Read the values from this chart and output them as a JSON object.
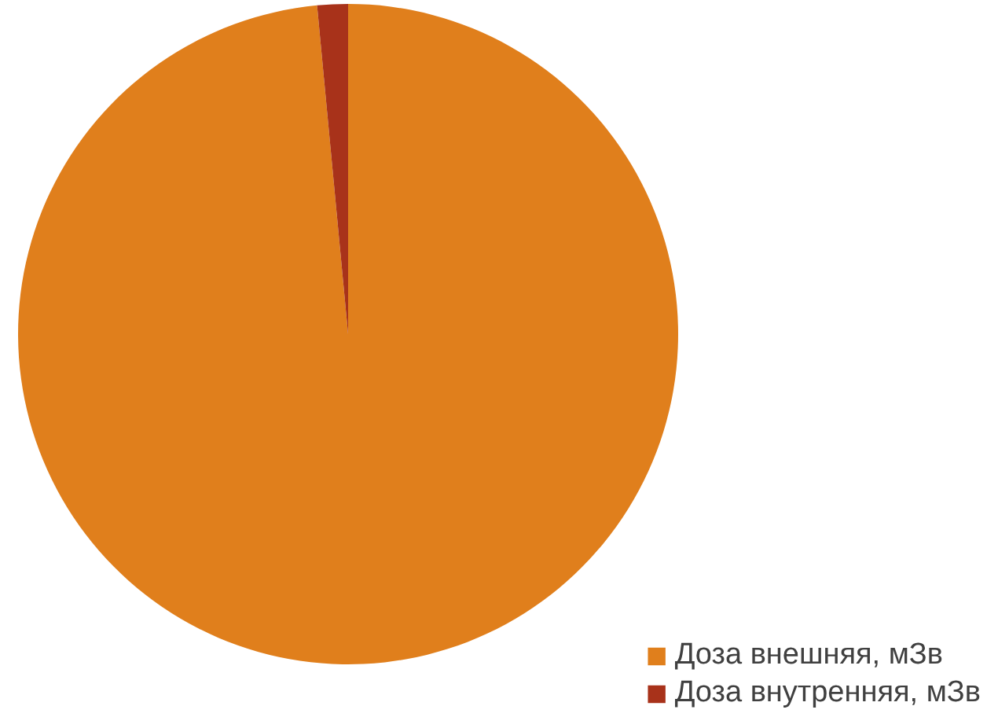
{
  "chart_data": {
    "type": "pie",
    "categories": [
      "Доза внешняя, мЗв",
      "Доза внутренняя, мЗв"
    ],
    "values": [
      98.5,
      1.5
    ],
    "colors": [
      "#e07f1c",
      "#a8321a"
    ],
    "legend": "bottom right"
  }
}
